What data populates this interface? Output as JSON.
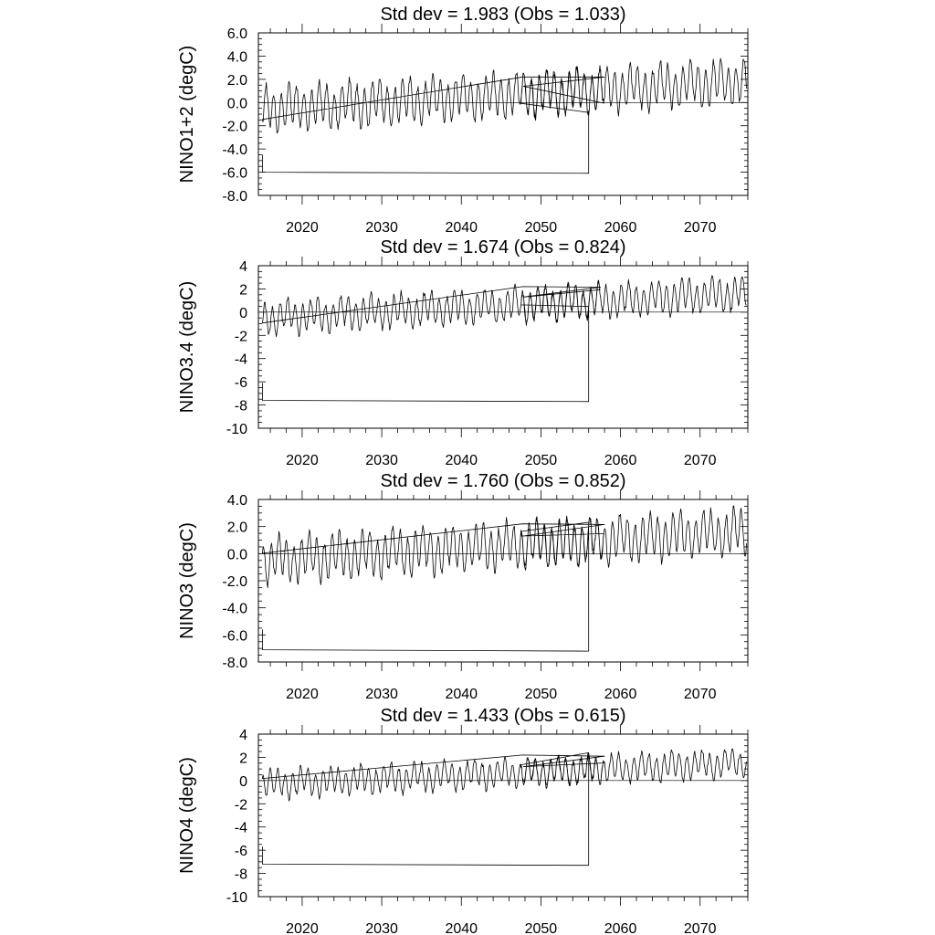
{
  "chart_data": [
    {
      "type": "line",
      "title": "Std dev = 1.983 (Obs = 1.033)",
      "ylabel": "NINO1+2 (degC)",
      "xlabel": "",
      "xlim": [
        2014.5,
        2076.0
      ],
      "ylim": [
        -8.0,
        6.0
      ],
      "yticks": [
        -8,
        -6,
        -4,
        -2,
        0,
        2,
        4,
        6
      ],
      "ytick_labels": [
        "-8.0",
        "-6.0",
        "-4.0",
        "-2.0",
        "0.0",
        "2.0",
        "4.0",
        "6.0"
      ],
      "xticks": [
        2020,
        2030,
        2040,
        2050,
        2060,
        2070
      ],
      "xtick_labels": [
        "2020",
        "2030",
        "2040",
        "2050",
        "2060",
        "2070"
      ],
      "grid": false,
      "reference_line": 0,
      "series_shape": {
        "base": -0.6,
        "trend_per_year": 0.04,
        "amplitude": 1.6,
        "jitter": 0.6,
        "box_start_year": 2015.0,
        "box_end_year": 2056.0,
        "box_bottom": -6.0,
        "loop_start_year": 2047.5,
        "loop_end_year": 2058.0
      }
    },
    {
      "type": "line",
      "title": "Std dev = 1.674 (Obs = 0.824)",
      "ylabel": "NINO3.4 (degC)",
      "xlabel": "",
      "xlim": [
        2014.5,
        2076.0
      ],
      "ylim": [
        -10,
        4
      ],
      "yticks": [
        -10,
        -8,
        -6,
        -4,
        -2,
        0,
        2,
        4
      ],
      "ytick_labels": [
        "-10",
        "-8",
        "-6",
        "-4",
        "-2",
        "0",
        "2",
        "4"
      ],
      "xticks": [
        2020,
        2030,
        2040,
        2050,
        2060,
        2070
      ],
      "xtick_labels": [
        "2020",
        "2030",
        "2040",
        "2050",
        "2060",
        "2070"
      ],
      "grid": false,
      "reference_line": 0,
      "series_shape": {
        "base": -0.5,
        "trend_per_year": 0.035,
        "amplitude": 1.2,
        "jitter": 0.5,
        "box_start_year": 2015.0,
        "box_end_year": 2056.0,
        "box_bottom": -7.6,
        "loop_start_year": 2047.5,
        "loop_end_year": 2057.5
      }
    },
    {
      "type": "line",
      "title": "Std dev = 1.760 (Obs = 0.852)",
      "ylabel": "NINO3 (degC)",
      "xlabel": "",
      "xlim": [
        2014.5,
        2076.0
      ],
      "ylim": [
        -8.0,
        4.0
      ],
      "yticks": [
        -8,
        -6,
        -4,
        -2,
        0,
        2,
        4
      ],
      "ytick_labels": [
        "-8.0",
        "-6.0",
        "-4.0",
        "-2.0",
        "0.0",
        "2.0",
        "4.0"
      ],
      "xticks": [
        2020,
        2030,
        2040,
        2050,
        2060,
        2070
      ],
      "xtick_labels": [
        "2020",
        "2030",
        "2040",
        "2050",
        "2060",
        "2070"
      ],
      "grid": false,
      "reference_line": 0,
      "series_shape": {
        "base": -0.5,
        "trend_per_year": 0.035,
        "amplitude": 1.4,
        "jitter": 0.55,
        "box_start_year": 2015.0,
        "box_end_year": 2056.0,
        "box_bottom": -7.1,
        "loop_start_year": 2047.5,
        "loop_end_year": 2058.0
      }
    },
    {
      "type": "line",
      "title": "Std dev = 1.433 (Obs = 0.615)",
      "ylabel": "NINO4 (degC)",
      "xlabel": "",
      "xlim": [
        2014.5,
        2076.0
      ],
      "ylim": [
        -10,
        4
      ],
      "yticks": [
        -10,
        -8,
        -6,
        -4,
        -2,
        0,
        2,
        4
      ],
      "ytick_labels": [
        "-10",
        "-8",
        "-6",
        "-4",
        "-2",
        "0",
        "2",
        "4"
      ],
      "xticks": [
        2020,
        2030,
        2040,
        2050,
        2060,
        2070
      ],
      "xtick_labels": [
        "2020",
        "2030",
        "2040",
        "2050",
        "2060",
        "2070"
      ],
      "grid": false,
      "reference_line": 0,
      "series_shape": {
        "base": -0.3,
        "trend_per_year": 0.03,
        "amplitude": 1.0,
        "jitter": 0.45,
        "box_start_year": 2015.0,
        "box_end_year": 2056.0,
        "box_bottom": -7.2,
        "loop_start_year": 2047.5,
        "loop_end_year": 2058.0
      }
    }
  ]
}
